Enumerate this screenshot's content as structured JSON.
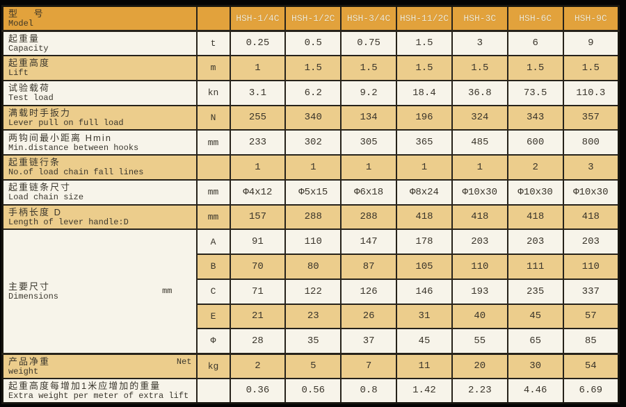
{
  "colors": {
    "header_gold": "#e2a23c",
    "row_tan": "#eccd8c",
    "row_white": "#f7f4ea",
    "border": "#26221a",
    "page_background": "#000000",
    "header_model_text": "#f3ecd6",
    "body_text": "#3a362c"
  },
  "header": {
    "label_zh": "型  号",
    "label_en": "Model",
    "unit_header": "",
    "models": [
      "HSH-1/4C",
      "HSH-1/2C",
      "HSH-3/4C",
      "HSH-11/2C",
      "HSH-3C",
      "HSH-6C",
      "HSH-9C"
    ]
  },
  "rows": [
    {
      "zh": "起重量",
      "en": "Capacity",
      "unit": "t",
      "shade": "white",
      "values": [
        "0.25",
        "0.5",
        "0.75",
        "1.5",
        "3",
        "6",
        "9"
      ]
    },
    {
      "zh": "起重高度",
      "en": "Lift",
      "unit": "m",
      "shade": "tan",
      "values": [
        "1",
        "1.5",
        "1.5",
        "1.5",
        "1.5",
        "1.5",
        "1.5"
      ]
    },
    {
      "zh": "试验载荷",
      "en": "Test load",
      "unit": "kn",
      "shade": "white",
      "values": [
        "3.1",
        "6.2",
        "9.2",
        "18.4",
        "36.8",
        "73.5",
        "110.3"
      ]
    },
    {
      "zh": "满载时手扳力",
      "en": "Lever pull on full load",
      "unit": "N",
      "shade": "tan",
      "values": [
        "255",
        "340",
        "134",
        "196",
        "324",
        "343",
        "357"
      ]
    },
    {
      "zh": "两钩间最小距离  Hmin",
      "en": "Min.distance between hooks",
      "unit": "mm",
      "shade": "white",
      "values": [
        "233",
        "302",
        "305",
        "365",
        "485",
        "600",
        "800"
      ]
    },
    {
      "zh": "起重链行条",
      "en": "No.of load chain fall lines",
      "unit": "",
      "shade": "tan",
      "values": [
        "1",
        "1",
        "1",
        "1",
        "1",
        "2",
        "3"
      ]
    },
    {
      "zh": "起重链条尺寸",
      "en": "Load chain size",
      "unit": "mm",
      "shade": "white",
      "values": [
        "Φ4x12",
        "Φ5x15",
        "Φ6x18",
        "Φ8x24",
        "Φ10x30",
        "Φ10x30",
        "Φ10x30"
      ]
    },
    {
      "zh": "手柄长度 D",
      "en": "Length of lever handle:D",
      "unit": "mm",
      "shade": "tan",
      "values": [
        "157",
        "288",
        "288",
        "418",
        "418",
        "418",
        "418"
      ]
    }
  ],
  "dimensions": {
    "zh": "主要尺寸",
    "en": "Dimensions",
    "unit": "mm",
    "subrows": [
      {
        "key": "A",
        "shade": "white",
        "values": [
          "91",
          "110",
          "147",
          "178",
          "203",
          "203",
          "203"
        ]
      },
      {
        "key": "B",
        "shade": "tan",
        "values": [
          "70",
          "80",
          "87",
          "105",
          "110",
          "111",
          "110"
        ]
      },
      {
        "key": "C",
        "shade": "white",
        "values": [
          "71",
          "122",
          "126",
          "146",
          "193",
          "235",
          "337"
        ]
      },
      {
        "key": "E",
        "shade": "tan",
        "values": [
          "21",
          "23",
          "26",
          "31",
          "40",
          "45",
          "57"
        ]
      },
      {
        "key": "Φ",
        "shade": "white",
        "values": [
          "28",
          "35",
          "37",
          "45",
          "55",
          "65",
          "85"
        ]
      }
    ]
  },
  "weight_row": {
    "zh": "产品净重",
    "note": "Net",
    "en": "weight",
    "unit": "kg",
    "shade": "tan",
    "values": [
      "2",
      "5",
      "7",
      "11",
      "20",
      "30",
      "54"
    ]
  },
  "extra_row": {
    "zh": "起重高度每增加1米应增加的重量",
    "en": "Extra weight per meter of extra lift",
    "unit": "",
    "shade": "white",
    "values": [
      "0.36",
      "0.56",
      "0.8",
      "1.42",
      "2.23",
      "4.46",
      "6.69"
    ]
  }
}
